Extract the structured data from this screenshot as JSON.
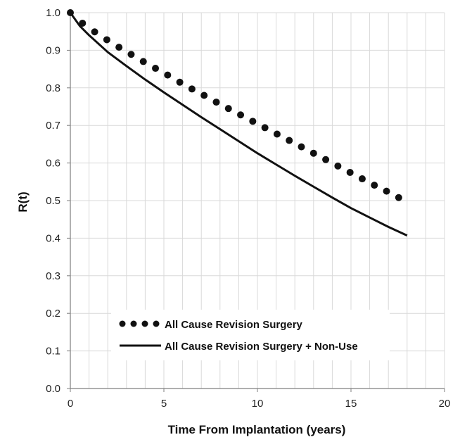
{
  "chart_data": {
    "type": "line",
    "xlabel": "Time From Implantation (years)",
    "ylabel": "R(t)",
    "xlim": [
      0,
      20
    ],
    "ylim": [
      0.0,
      1.0
    ],
    "x_ticks": [
      "0",
      "5",
      "10",
      "15",
      "20"
    ],
    "y_ticks": [
      "0.0",
      "0.1",
      "0.2",
      "0.3",
      "0.4",
      "0.5",
      "0.6",
      "0.7",
      "0.8",
      "0.9",
      "1.0"
    ],
    "grid": true,
    "legend_position": "bottom-left",
    "series": [
      {
        "name": "All Cause Revision Surgery",
        "style": "dotted",
        "color": "#111111",
        "x": [
          0,
          0.65,
          1.3,
          1.95,
          2.6,
          3.25,
          3.9,
          4.55,
          5.2,
          5.85,
          6.5,
          7.15,
          7.8,
          8.45,
          9.1,
          9.75,
          10.4,
          11.05,
          11.7,
          12.35,
          13.0,
          13.65,
          14.3,
          14.95,
          15.6,
          16.25,
          16.9,
          17.55,
          18.0
        ],
        "y": [
          1.0,
          0.972,
          0.949,
          0.928,
          0.908,
          0.889,
          0.87,
          0.852,
          0.834,
          0.815,
          0.797,
          0.78,
          0.762,
          0.745,
          0.728,
          0.711,
          0.694,
          0.677,
          0.66,
          0.643,
          0.626,
          0.609,
          0.592,
          0.575,
          0.558,
          0.541,
          0.525,
          0.508,
          0.525
        ]
      },
      {
        "name": "All Cause Revision Surgery + Non-Use",
        "style": "solid",
        "color": "#111111",
        "x": [
          0,
          0.5,
          1,
          2,
          3,
          4,
          5,
          6,
          7,
          8,
          9,
          10,
          11,
          12,
          13,
          14,
          15,
          16,
          17,
          18
        ],
        "y": [
          1.0,
          0.965,
          0.94,
          0.895,
          0.858,
          0.822,
          0.788,
          0.755,
          0.722,
          0.69,
          0.658,
          0.626,
          0.596,
          0.566,
          0.537,
          0.508,
          0.48,
          0.455,
          0.43,
          0.407
        ]
      }
    ]
  }
}
